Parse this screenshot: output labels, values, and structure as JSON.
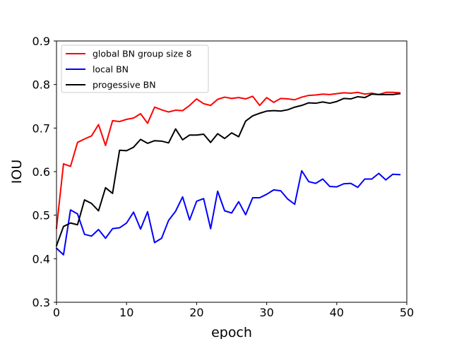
{
  "chart_data": {
    "type": "line",
    "title": "",
    "xlabel": "epoch",
    "ylabel": "IOU",
    "xlim": [
      0,
      50
    ],
    "ylim": [
      0.3,
      0.9
    ],
    "xticks": [
      0,
      10,
      20,
      30,
      40,
      50
    ],
    "yticks": [
      0.3,
      0.4,
      0.5,
      0.6,
      0.7,
      0.8,
      0.9
    ],
    "grid": false,
    "legend_position": "top-left",
    "x": [
      0,
      1,
      2,
      3,
      4,
      5,
      6,
      7,
      8,
      9,
      10,
      11,
      12,
      13,
      14,
      15,
      16,
      17,
      18,
      19,
      20,
      21,
      22,
      23,
      24,
      25,
      26,
      27,
      28,
      29,
      30,
      31,
      32,
      33,
      34,
      35,
      36,
      37,
      38,
      39,
      40,
      41,
      42,
      43,
      44,
      45,
      46,
      47,
      48,
      49
    ],
    "series": [
      {
        "name": "global BN group size 8",
        "color": "#ff0000",
        "values": [
          0.47,
          0.618,
          0.612,
          0.667,
          0.675,
          0.682,
          0.708,
          0.66,
          0.717,
          0.715,
          0.72,
          0.723,
          0.733,
          0.711,
          0.748,
          0.742,
          0.737,
          0.741,
          0.74,
          0.752,
          0.767,
          0.756,
          0.752,
          0.766,
          0.771,
          0.768,
          0.77,
          0.767,
          0.773,
          0.752,
          0.77,
          0.759,
          0.768,
          0.767,
          0.765,
          0.771,
          0.775,
          0.776,
          0.778,
          0.777,
          0.779,
          0.781,
          0.78,
          0.782,
          0.778,
          0.78,
          0.777,
          0.782,
          0.782,
          0.781
        ]
      },
      {
        "name": "local BN",
        "color": "#0000ff",
        "values": [
          0.424,
          0.409,
          0.512,
          0.503,
          0.456,
          0.452,
          0.467,
          0.447,
          0.469,
          0.471,
          0.482,
          0.507,
          0.468,
          0.508,
          0.437,
          0.447,
          0.488,
          0.509,
          0.542,
          0.489,
          0.532,
          0.538,
          0.469,
          0.555,
          0.51,
          0.505,
          0.531,
          0.501,
          0.54,
          0.54,
          0.548,
          0.558,
          0.556,
          0.537,
          0.525,
          0.602,
          0.577,
          0.573,
          0.583,
          0.566,
          0.565,
          0.572,
          0.573,
          0.564,
          0.583,
          0.583,
          0.596,
          0.581,
          0.594,
          0.593
        ]
      },
      {
        "name": "progessive BN",
        "color": "#000000",
        "values": [
          0.43,
          0.474,
          0.482,
          0.478,
          0.535,
          0.527,
          0.51,
          0.563,
          0.55,
          0.649,
          0.648,
          0.656,
          0.674,
          0.665,
          0.671,
          0.67,
          0.666,
          0.698,
          0.673,
          0.684,
          0.684,
          0.686,
          0.667,
          0.687,
          0.676,
          0.689,
          0.68,
          0.716,
          0.728,
          0.734,
          0.739,
          0.74,
          0.739,
          0.742,
          0.748,
          0.752,
          0.758,
          0.757,
          0.76,
          0.757,
          0.761,
          0.768,
          0.767,
          0.772,
          0.77,
          0.778,
          0.777,
          0.777,
          0.777,
          0.779
        ]
      }
    ]
  }
}
